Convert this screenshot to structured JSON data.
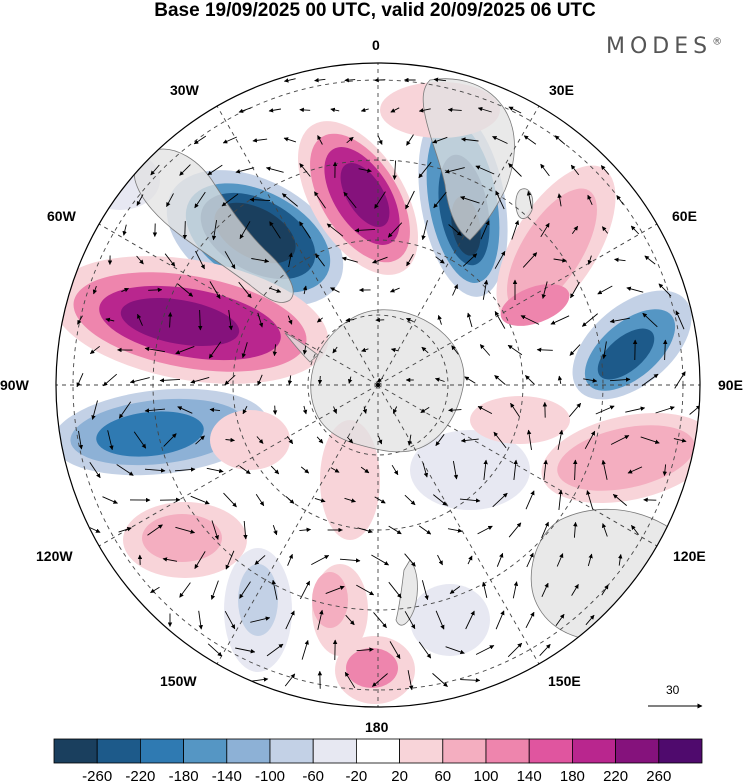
{
  "title": "Base 19/09/2025 00 UTC, valid 20/09/2025 06 UTC",
  "brand": "MODES",
  "brand_mark": "®",
  "longitude_labels": {
    "lon_0": "0",
    "lon_30e": "30E",
    "lon_60e": "60E",
    "lon_90e": "90E",
    "lon_120e": "120E",
    "lon_150e": "150E",
    "lon_180": "180",
    "lon_150w": "150W",
    "lon_120w": "120W",
    "lon_90w": "90W",
    "lon_60w": "60W",
    "lon_30w": "30W"
  },
  "reference_vector": {
    "label": "30"
  },
  "colorbar": {
    "ticks": [
      "-260",
      "-220",
      "-180",
      "-140",
      "-100",
      "-60",
      "-20",
      "20",
      "60",
      "100",
      "140",
      "180",
      "220",
      "260"
    ],
    "colors": [
      "#1a3f5e",
      "#1d5a8a",
      "#2f7ab2",
      "#5596c4",
      "#8db1d6",
      "#c3d1e6",
      "#e7e8f2",
      "#ffffff",
      "#f8d4d9",
      "#f4aec0",
      "#ee85ad",
      "#e0559f",
      "#b9268e",
      "#85127c",
      "#4f0a6d"
    ]
  },
  "colors": {
    "land": "#e8e8e8",
    "ocean": "#ffffff",
    "vector": "#000000"
  }
}
